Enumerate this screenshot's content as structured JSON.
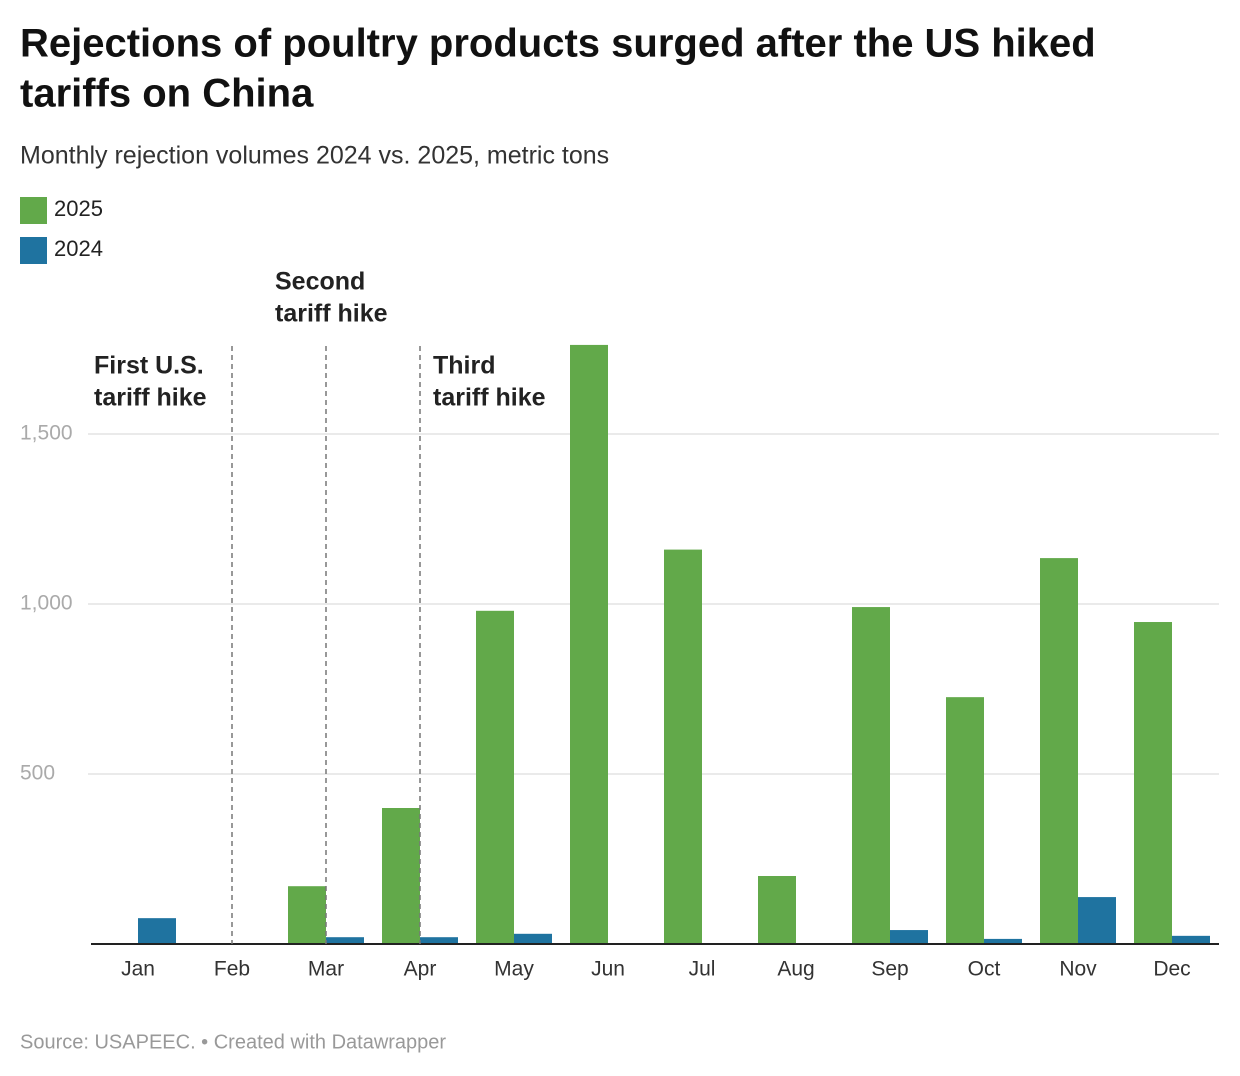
{
  "chart_data": {
    "type": "bar",
    "title": [
      "Rejections of poultry products surged after the US hiked",
      "tariffs on China"
    ],
    "subtitle": "Monthly rejection volumes 2024 vs. 2025, metric tons",
    "categories": [
      "Jan",
      "Feb",
      "Mar",
      "Apr",
      "May",
      "Jun",
      "Jul",
      "Aug",
      "Sep",
      "Oct",
      "Nov",
      "Dec"
    ],
    "series": [
      {
        "name": "2025",
        "color": "#62a94a",
        "values": [
          null,
          null,
          170,
          400,
          980,
          1762,
          1160,
          200,
          991,
          726,
          1135,
          947
        ]
      },
      {
        "name": "2024",
        "color": "#1f73a0",
        "values": [
          76,
          null,
          20,
          20,
          30,
          null,
          null,
          null,
          41,
          15,
          138,
          24
        ]
      }
    ],
    "ylim": [
      0,
      1800
    ],
    "yticks": [
      {
        "value": 500,
        "label": "500"
      },
      {
        "value": 1000,
        "label": "1,000"
      },
      {
        "value": 1500,
        "label": "1,500"
      }
    ],
    "grid": true,
    "annotations": [
      {
        "lines": [
          "First U.S.",
          "tariff hike"
        ],
        "category": "Feb",
        "side": "left"
      },
      {
        "lines": [
          "Second",
          "tariff hike"
        ],
        "category": "Mar",
        "side": "top"
      },
      {
        "lines": [
          "Third",
          "tariff hike"
        ],
        "category": "Apr",
        "side": "right"
      }
    ],
    "source": "Source: USAPEEC. • Created with Datawrapper"
  }
}
